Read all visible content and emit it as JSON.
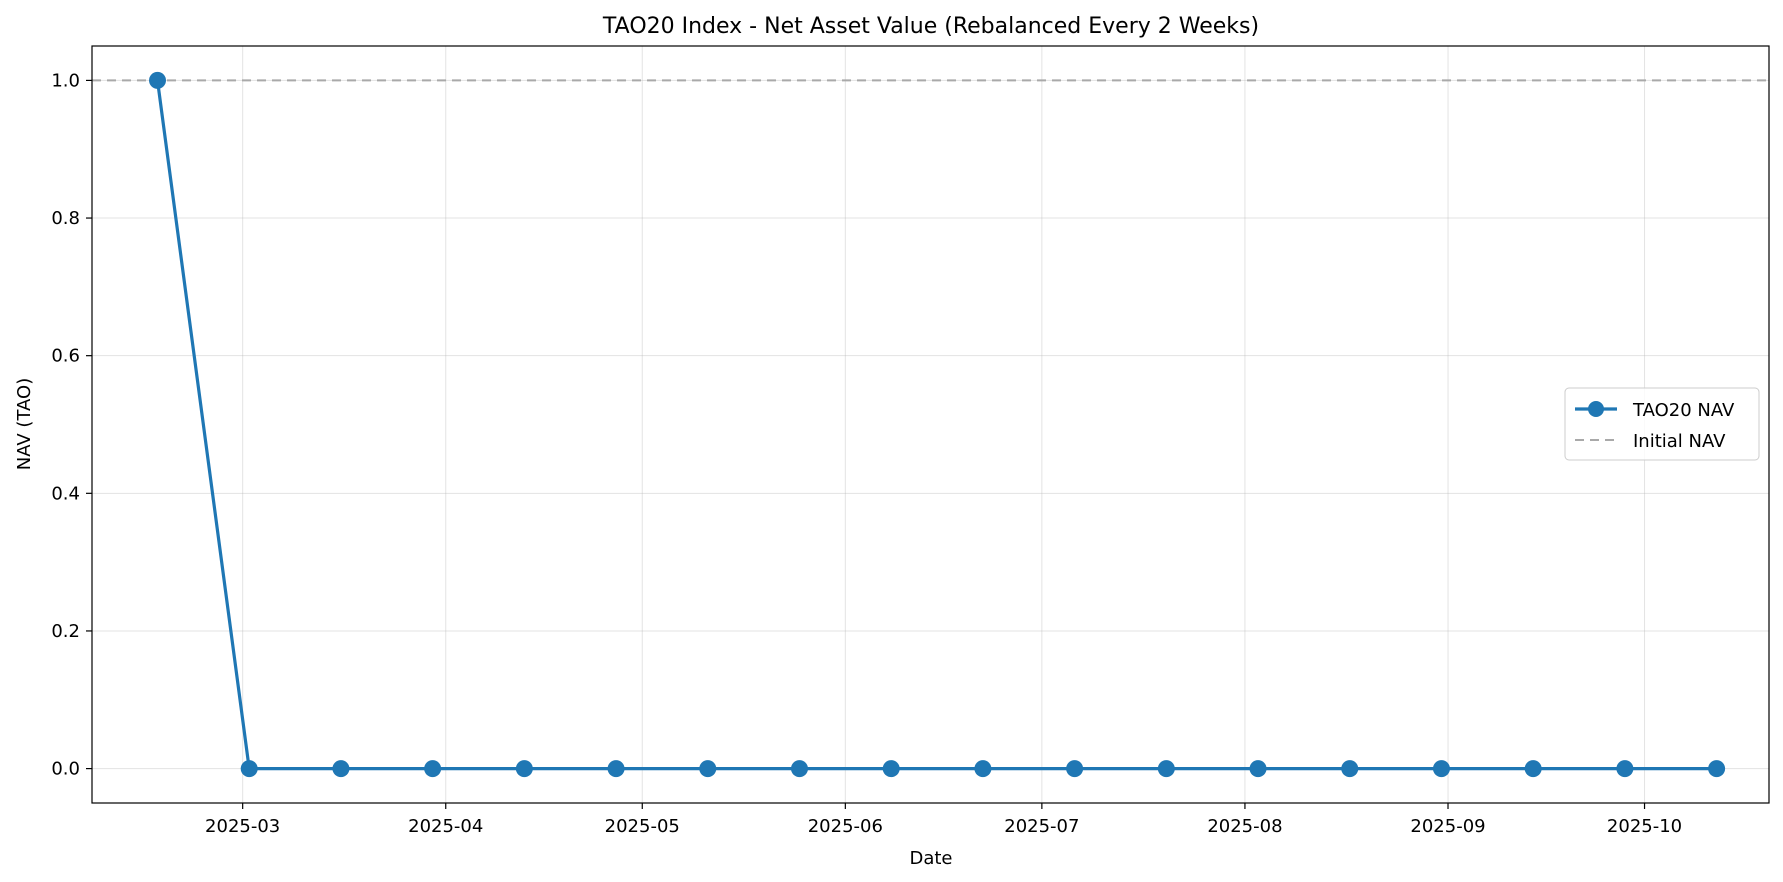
{
  "chart_data": {
    "type": "line",
    "title": "TAO20 Index - Net Asset Value (Rebalanced Every 2 Weeks)",
    "xlabel": "Date",
    "ylabel": "NAV (TAO)",
    "x_tick_labels": [
      "2025-03",
      "2025-04",
      "2025-05",
      "2025-06",
      "2025-07",
      "2025-08",
      "2025-09",
      "2025-10"
    ],
    "y_tick_labels": [
      "0.0",
      "0.2",
      "0.4",
      "0.6",
      "0.8",
      "1.0"
    ],
    "ylim": [
      -0.05,
      1.05
    ],
    "xlim": [
      "2025-02-06",
      "2025-10-20"
    ],
    "grid": true,
    "legend_placement": "center-right",
    "series": [
      {
        "name": "TAO20 NAV",
        "color": "#1f77b4",
        "style": "solid-with-markers",
        "x": [
          "2025-02-16",
          "2025-03-02",
          "2025-03-16",
          "2025-03-30",
          "2025-04-13",
          "2025-04-27",
          "2025-05-11",
          "2025-05-25",
          "2025-06-08",
          "2025-06-22",
          "2025-07-06",
          "2025-07-20",
          "2025-08-03",
          "2025-08-17",
          "2025-08-31",
          "2025-09-14",
          "2025-09-28",
          "2025-10-12"
        ],
        "values": [
          1.0,
          0.0,
          0.0,
          0.0,
          0.0,
          0.0,
          0.0,
          0.0,
          0.0,
          0.0,
          0.0,
          0.0,
          0.0,
          0.0,
          0.0,
          0.0,
          0.0,
          0.0
        ]
      },
      {
        "name": "Initial NAV",
        "color": "#a9a9a9",
        "style": "dashed",
        "value": 1.0
      }
    ]
  }
}
